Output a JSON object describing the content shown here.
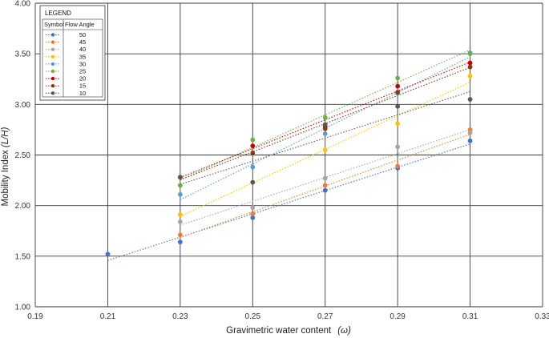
{
  "chart_data": {
    "type": "scatter",
    "title": "",
    "xlabel": "Gravimetric water content",
    "xlabel_symbol": "(ω)",
    "ylabel": "Mobility Index",
    "ylabel_symbol": "(L/H)",
    "xlim": [
      0.19,
      0.33
    ],
    "ylim": [
      1.0,
      4.0
    ],
    "x_ticks": [
      "0.19",
      "0.21",
      "0.23",
      "0.25",
      "0.27",
      "0.29",
      "0.31",
      "0.33"
    ],
    "y_ticks": [
      "1.00",
      "1.50",
      "2.00",
      "2.50",
      "3.00",
      "3.50",
      "4.00"
    ],
    "grid": true,
    "trendlines": "linear, dotted",
    "legend": {
      "title": "LEGEND",
      "placement": "top-left",
      "col_symbol": "Symbol",
      "col_angle": "Flow Angle"
    },
    "series": [
      {
        "name": "50",
        "color": "#4472c4",
        "x": [
          0.21,
          0.23,
          0.25,
          0.27,
          0.29,
          0.31
        ],
        "y": [
          1.52,
          1.64,
          1.88,
          2.15,
          2.37,
          2.64
        ]
      },
      {
        "name": "45",
        "color": "#ed7d31",
        "x": [
          0.23,
          0.25,
          0.27,
          0.29,
          0.31
        ],
        "y": [
          1.71,
          1.92,
          2.2,
          2.39,
          2.75
        ]
      },
      {
        "name": "40",
        "color": "#a5a5a5",
        "x": [
          0.23,
          0.25,
          0.27,
          0.29,
          0.31
        ],
        "y": [
          1.84,
          1.98,
          2.27,
          2.58,
          2.72
        ]
      },
      {
        "name": "35",
        "color": "#ffc000",
        "x": [
          0.23,
          0.25,
          0.27,
          0.29,
          0.31
        ],
        "y": [
          1.91,
          2.23,
          2.55,
          2.81,
          3.28
        ]
      },
      {
        "name": "30",
        "color": "#5b9bd5",
        "x": [
          0.23,
          0.25,
          0.27,
          0.29,
          0.31
        ],
        "y": [
          2.11,
          2.38,
          2.71,
          3.11,
          3.51
        ]
      },
      {
        "name": "25",
        "color": "#70ad47",
        "x": [
          0.23,
          0.25,
          0.27,
          0.29,
          0.31
        ],
        "y": [
          2.2,
          2.65,
          2.87,
          3.26,
          3.5
        ]
      },
      {
        "name": "20",
        "color": "#c00000",
        "x": [
          0.23,
          0.25,
          0.27,
          0.29,
          0.31
        ],
        "y": [
          2.28,
          2.59,
          2.78,
          3.18,
          3.41
        ]
      },
      {
        "name": "15",
        "color": "#843c0c",
        "x": [
          0.23,
          0.25,
          0.27,
          0.29,
          0.31
        ],
        "y": [
          2.28,
          2.52,
          2.76,
          3.12,
          3.37
        ]
      },
      {
        "name": "10",
        "color": "#595959",
        "x": [
          0.23,
          0.25,
          0.27,
          0.29,
          0.31
        ],
        "y": [
          2.28,
          2.23,
          2.8,
          2.98,
          3.05
        ]
      }
    ]
  }
}
